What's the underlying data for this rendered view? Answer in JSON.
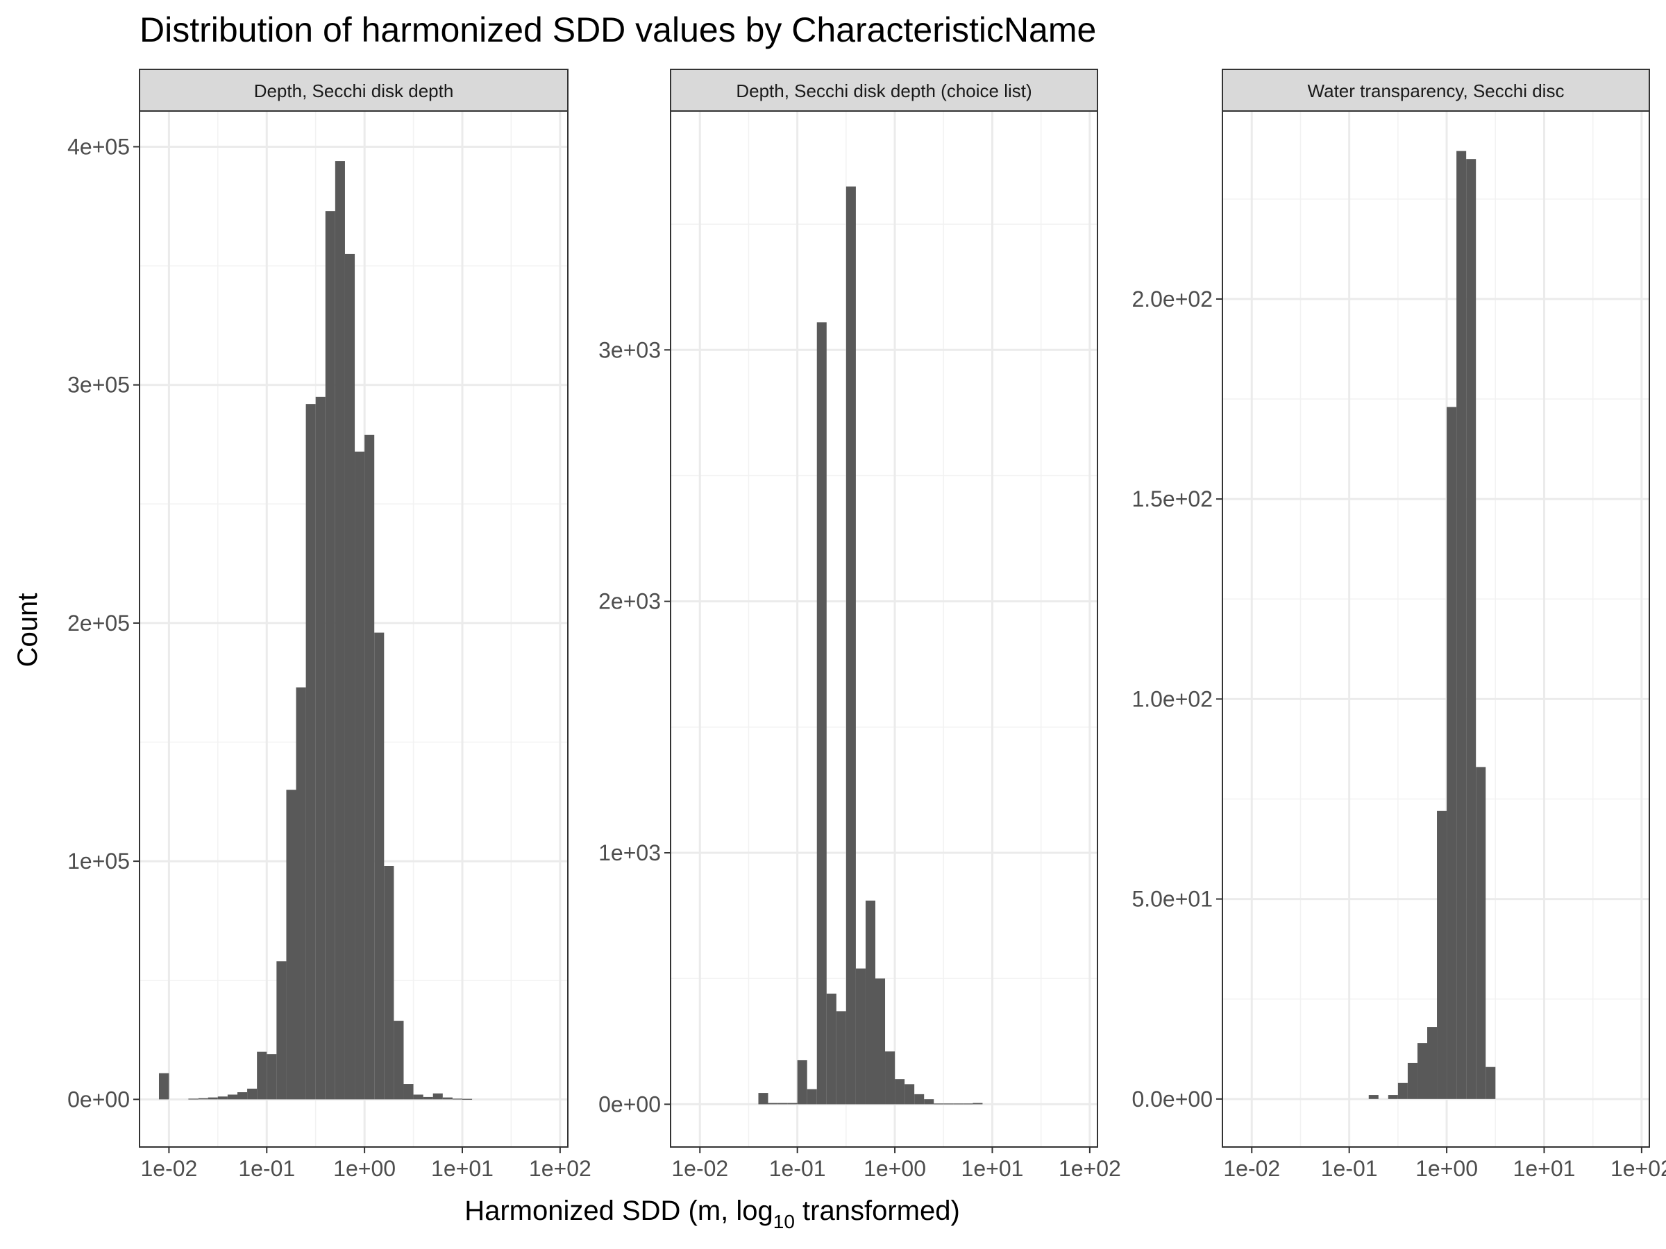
{
  "chart_data": {
    "type": "histogram-facets",
    "title": "Distribution of harmonized SDD values by CharacteristicName",
    "xlabel": {
      "prefix": "Harmonized SDD (m,  log",
      "subscript": "10",
      "suffix": "  transformed)"
    },
    "ylabel": "Count",
    "x_scale": "log10",
    "x_range": [
      0.005,
      120
    ],
    "x_ticks": [
      {
        "value": 0.01,
        "label": "1e-02"
      },
      {
        "value": 0.1,
        "label": "1e-01"
      },
      {
        "value": 1,
        "label": "1e+00"
      },
      {
        "value": 10,
        "label": "1e+01"
      },
      {
        "value": 100,
        "label": "1e+02"
      }
    ],
    "grid": true,
    "bar_color": "#595959",
    "strip_color": "#d9d9d9",
    "facets": [
      {
        "strip": "Depth, Secchi disk depth",
        "y_range": [
          -20000,
          415000
        ],
        "y_ticks": [
          {
            "value": 0,
            "label": "0e+00"
          },
          {
            "value": 100000,
            "label": "1e+05"
          },
          {
            "value": 200000,
            "label": "2e+05"
          },
          {
            "value": 300000,
            "label": "3e+05"
          },
          {
            "value": 400000,
            "label": "4e+05"
          }
        ],
        "bins": [
          {
            "x0": 0.0079,
            "x1": 0.01,
            "count": 11000
          },
          {
            "x0": 0.0158,
            "x1": 0.02,
            "count": 300
          },
          {
            "x0": 0.02,
            "x1": 0.0251,
            "count": 500
          },
          {
            "x0": 0.0251,
            "x1": 0.0316,
            "count": 800
          },
          {
            "x0": 0.0316,
            "x1": 0.0398,
            "count": 1200
          },
          {
            "x0": 0.0398,
            "x1": 0.0501,
            "count": 2000
          },
          {
            "x0": 0.0501,
            "x1": 0.0631,
            "count": 3000
          },
          {
            "x0": 0.0631,
            "x1": 0.0794,
            "count": 4500
          },
          {
            "x0": 0.0794,
            "x1": 0.1,
            "count": 20000
          },
          {
            "x0": 0.1,
            "x1": 0.1259,
            "count": 19000
          },
          {
            "x0": 0.1259,
            "x1": 0.1585,
            "count": 58000
          },
          {
            "x0": 0.1585,
            "x1": 0.1995,
            "count": 130000
          },
          {
            "x0": 0.1995,
            "x1": 0.2512,
            "count": 173000
          },
          {
            "x0": 0.2512,
            "x1": 0.3162,
            "count": 292000
          },
          {
            "x0": 0.3162,
            "x1": 0.3981,
            "count": 295000
          },
          {
            "x0": 0.3981,
            "x1": 0.5012,
            "count": 373000
          },
          {
            "x0": 0.5012,
            "x1": 0.631,
            "count": 394000
          },
          {
            "x0": 0.631,
            "x1": 0.7943,
            "count": 355000
          },
          {
            "x0": 0.7943,
            "x1": 1.0,
            "count": 272000
          },
          {
            "x0": 1.0,
            "x1": 1.2589,
            "count": 279000
          },
          {
            "x0": 1.2589,
            "x1": 1.5849,
            "count": 196000
          },
          {
            "x0": 1.5849,
            "x1": 1.9953,
            "count": 98000
          },
          {
            "x0": 1.9953,
            "x1": 2.5119,
            "count": 33000
          },
          {
            "x0": 2.5119,
            "x1": 3.1623,
            "count": 6500
          },
          {
            "x0": 3.1623,
            "x1": 3.9811,
            "count": 2000
          },
          {
            "x0": 3.9811,
            "x1": 5.0119,
            "count": 1000
          },
          {
            "x0": 5.0119,
            "x1": 6.3096,
            "count": 2500
          },
          {
            "x0": 6.3096,
            "x1": 7.9433,
            "count": 800
          },
          {
            "x0": 7.9433,
            "x1": 10.0,
            "count": 300
          },
          {
            "x0": 10.0,
            "x1": 12.5893,
            "count": 200
          }
        ]
      },
      {
        "strip": "Depth, Secchi disk depth (choice list)",
        "y_range": [
          -170,
          3950
        ],
        "y_ticks": [
          {
            "value": 0,
            "label": "0e+00"
          },
          {
            "value": 1000,
            "label": "1e+03"
          },
          {
            "value": 2000,
            "label": "2e+03"
          },
          {
            "value": 3000,
            "label": "3e+03"
          }
        ],
        "bins": [
          {
            "x0": 0.0398,
            "x1": 0.0501,
            "count": 45
          },
          {
            "x0": 0.0501,
            "x1": 0.0631,
            "count": 5
          },
          {
            "x0": 0.0631,
            "x1": 0.0794,
            "count": 5
          },
          {
            "x0": 0.0794,
            "x1": 0.1,
            "count": 5
          },
          {
            "x0": 0.1,
            "x1": 0.1259,
            "count": 175
          },
          {
            "x0": 0.1259,
            "x1": 0.1585,
            "count": 60
          },
          {
            "x0": 0.1585,
            "x1": 0.1995,
            "count": 3110
          },
          {
            "x0": 0.1995,
            "x1": 0.2512,
            "count": 440
          },
          {
            "x0": 0.2512,
            "x1": 0.3162,
            "count": 370
          },
          {
            "x0": 0.3162,
            "x1": 0.3981,
            "count": 3650
          },
          {
            "x0": 0.3981,
            "x1": 0.5012,
            "count": 540
          },
          {
            "x0": 0.5012,
            "x1": 0.631,
            "count": 810
          },
          {
            "x0": 0.631,
            "x1": 0.7943,
            "count": 500
          },
          {
            "x0": 0.7943,
            "x1": 1.0,
            "count": 210
          },
          {
            "x0": 1.0,
            "x1": 1.2589,
            "count": 100
          },
          {
            "x0": 1.2589,
            "x1": 1.5849,
            "count": 80
          },
          {
            "x0": 1.5849,
            "x1": 1.9953,
            "count": 40
          },
          {
            "x0": 1.9953,
            "x1": 2.5119,
            "count": 20
          },
          {
            "x0": 2.5119,
            "x1": 3.1623,
            "count": 3
          },
          {
            "x0": 3.1623,
            "x1": 3.9811,
            "count": 3
          },
          {
            "x0": 3.9811,
            "x1": 5.0119,
            "count": 3
          },
          {
            "x0": 5.0119,
            "x1": 6.3096,
            "count": 3
          },
          {
            "x0": 6.3096,
            "x1": 7.9433,
            "count": 5
          }
        ]
      },
      {
        "strip": "Water transparency, Secchi disc",
        "y_range": [
          -12,
          247
        ],
        "y_ticks": [
          {
            "value": 0,
            "label": "0.0e+00"
          },
          {
            "value": 50,
            "label": "5.0e+01"
          },
          {
            "value": 100,
            "label": "1.0e+02"
          },
          {
            "value": 150,
            "label": "1.5e+02"
          },
          {
            "value": 200,
            "label": "2.0e+02"
          }
        ],
        "bins": [
          {
            "x0": 0.1585,
            "x1": 0.1995,
            "count": 1
          },
          {
            "x0": 0.2512,
            "x1": 0.3162,
            "count": 1
          },
          {
            "x0": 0.3162,
            "x1": 0.3981,
            "count": 4
          },
          {
            "x0": 0.3981,
            "x1": 0.5012,
            "count": 9
          },
          {
            "x0": 0.5012,
            "x1": 0.631,
            "count": 14
          },
          {
            "x0": 0.631,
            "x1": 0.7943,
            "count": 18
          },
          {
            "x0": 0.7943,
            "x1": 1.0,
            "count": 72
          },
          {
            "x0": 1.0,
            "x1": 1.2589,
            "count": 173
          },
          {
            "x0": 1.2589,
            "x1": 1.5849,
            "count": 237
          },
          {
            "x0": 1.5849,
            "x1": 1.9953,
            "count": 235
          },
          {
            "x0": 1.9953,
            "x1": 2.5119,
            "count": 83
          },
          {
            "x0": 2.5119,
            "x1": 3.1623,
            "count": 8
          }
        ]
      }
    ]
  }
}
